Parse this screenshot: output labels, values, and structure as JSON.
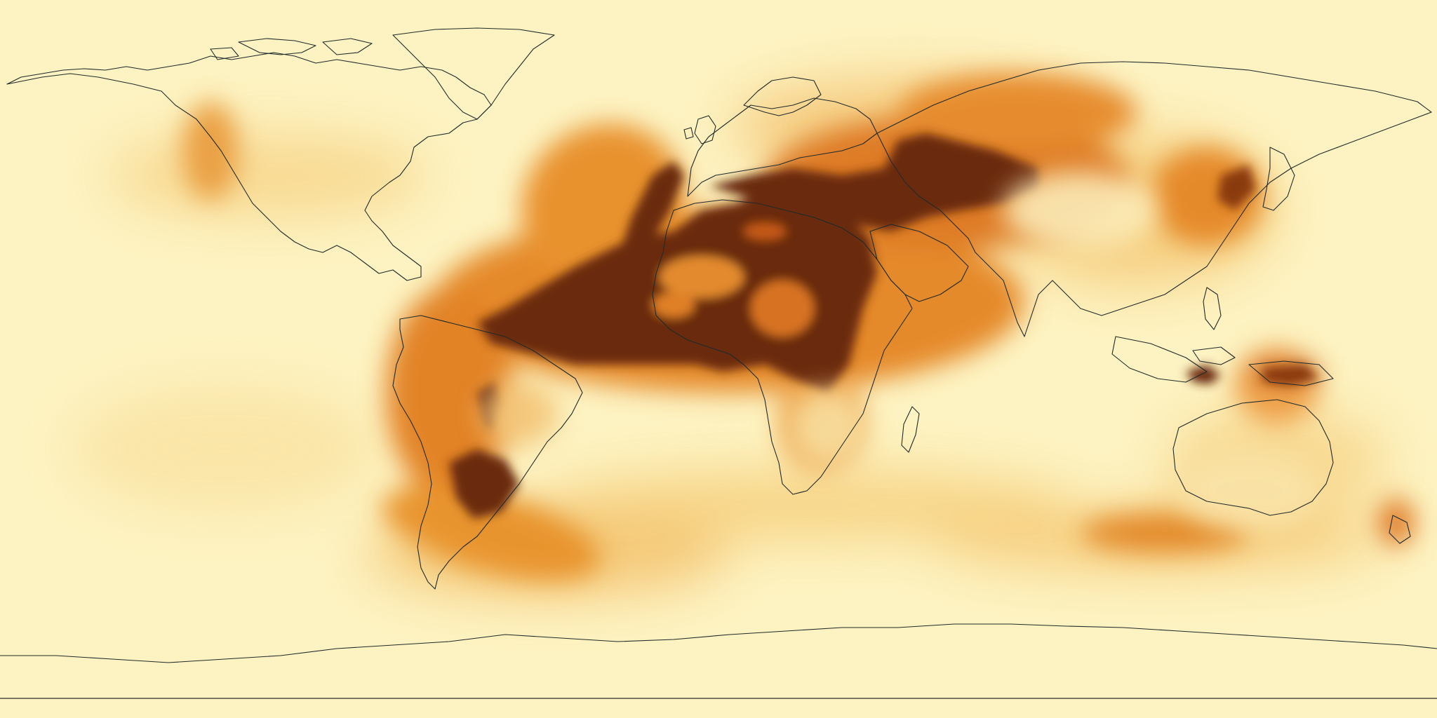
{
  "map": {
    "projection": "equirectangular",
    "coverage": "global",
    "colormap": {
      "low": "#fdf3c2",
      "mid_low": "#f9d98a",
      "mid": "#f2a33c",
      "mid_high": "#c75a14",
      "high": "#6a2a0c"
    },
    "outline_color": "#1f2a2a",
    "background_color": "#fdf3c2",
    "features": [
      "coastline-outlines",
      "saturated-plume-north-africa-atlantic",
      "plume-middle-east-central-asia",
      "plume-south-america",
      "plume-southern-ocean-band",
      "plume-east-asia",
      "plume-australia"
    ]
  }
}
